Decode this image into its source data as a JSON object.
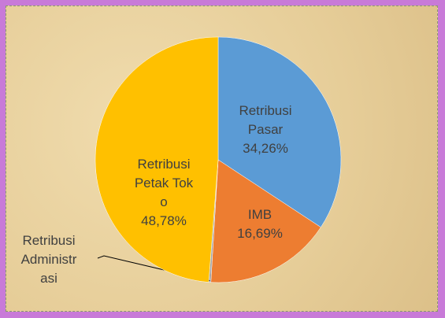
{
  "chart_data": {
    "type": "pie",
    "categories": [
      "Retribusi Pasar",
      "IMB",
      "Retribusi Administrasi",
      "Retribusi Petak Toko"
    ],
    "values": [
      34.26,
      16.69,
      0.27,
      48.78
    ],
    "value_labels": [
      "34,26%",
      "16,69%",
      null,
      "48,78%"
    ],
    "colors": [
      "#5b9bd5",
      "#ed7d31",
      "#a5a5a5",
      "#ffc000"
    ]
  }
}
